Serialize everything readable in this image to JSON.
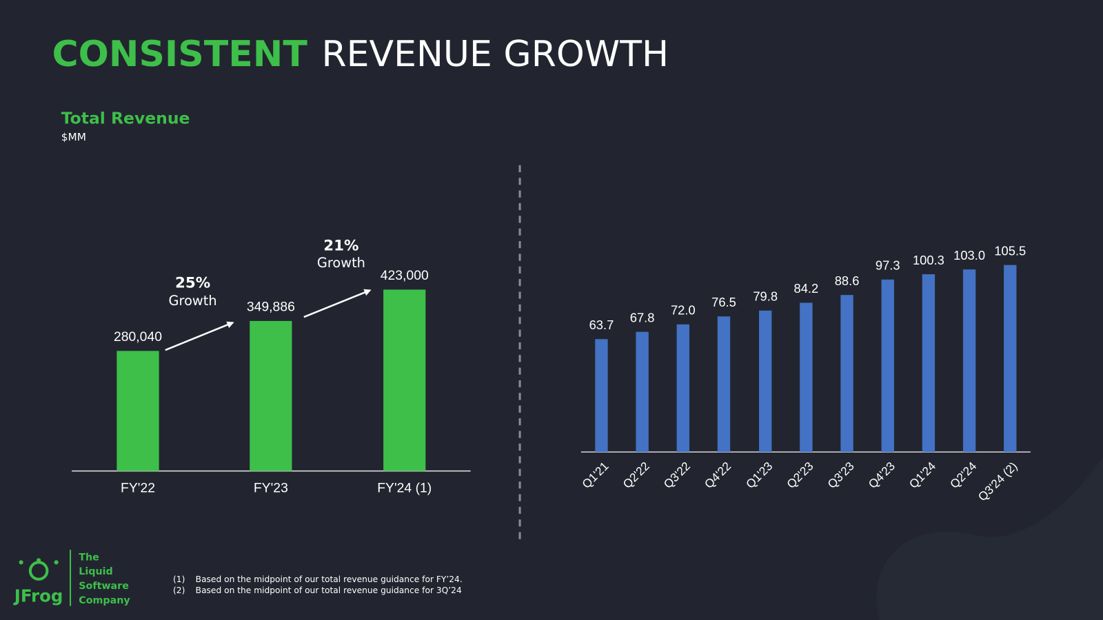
{
  "header": {
    "title_highlight": "CONSISTENT",
    "title_rest": "REVENUE GROWTH",
    "subtitle": "Total Revenue",
    "unit": "$MM"
  },
  "chart_data": [
    {
      "type": "bar",
      "categories": [
        "FY'22",
        "FY'23",
        "FY'24 (1)"
      ],
      "values": [
        280040,
        349886,
        423000
      ],
      "value_labels": [
        "280,040",
        "349,886",
        "423,000"
      ],
      "color": "#3dbf4a",
      "annotations": [
        {
          "text": "25%",
          "subtext": "Growth"
        },
        {
          "text": "21%",
          "subtext": "Growth"
        }
      ]
    },
    {
      "type": "bar",
      "categories": [
        "Q1'21",
        "Q2'22",
        "Q3'22",
        "Q4'22",
        "Q1'23",
        "Q2'23",
        "Q3'23",
        "Q4'23",
        "Q1'24",
        "Q2'24",
        "Q3'24 (2)"
      ],
      "values": [
        63.7,
        67.8,
        72.0,
        76.5,
        79.8,
        84.2,
        88.6,
        97.3,
        100.3,
        103.0,
        105.5
      ],
      "value_labels": [
        "63.7",
        "67.8",
        "72.0",
        "76.5",
        "79.8",
        "84.2",
        "88.6",
        "97.3",
        "100.3",
        "103.0",
        "105.5"
      ],
      "color": "#4472c4"
    }
  ],
  "footnotes": [
    [
      "(1)",
      "Based on the midpoint of our total revenue guidance for FY’24."
    ],
    [
      "(2)",
      "Based on the midpoint of our total revenue guidance for 3Q’24"
    ]
  ],
  "logo": {
    "brand": "JFrog",
    "tagline": [
      "The",
      "Liquid",
      "Software",
      "Company"
    ]
  }
}
